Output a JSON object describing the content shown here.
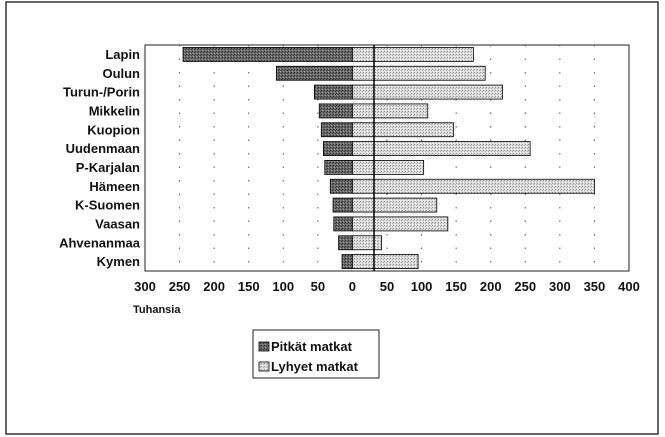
{
  "chart_data": {
    "type": "bar",
    "orientation": "horizontal",
    "categories": [
      "Lapin",
      "Oulun",
      "Turun-/Porin",
      "Mikkelin",
      "Kuopion",
      "Uudenmaan",
      "P-Karjalan",
      "Hämeen",
      "K-Suomen",
      "Vaasan",
      "Ahvenanmaa",
      "Kymen"
    ],
    "series": [
      {
        "name": "Pitkät matkat",
        "values": [
          245,
          110,
          55,
          48,
          45,
          42,
          40,
          32,
          28,
          27,
          20,
          15
        ],
        "color": "#555555",
        "side": "negative"
      },
      {
        "name": "Lyhyet matkat",
        "values": [
          175,
          192,
          217,
          109,
          146,
          257,
          103,
          350,
          122,
          138,
          42,
          95
        ],
        "color": "#d0d0d0",
        "side": "positive"
      }
    ],
    "x_ticks": [
      "300",
      "250",
      "200",
      "150",
      "100",
      "50",
      "0",
      "50",
      "100",
      "150",
      "200",
      "250",
      "300",
      "350",
      "400"
    ],
    "xlim": [
      -300,
      400
    ],
    "xlabel": "Tuhansia",
    "grid": "vertical-dotted",
    "legend_position": "bottom-center"
  }
}
